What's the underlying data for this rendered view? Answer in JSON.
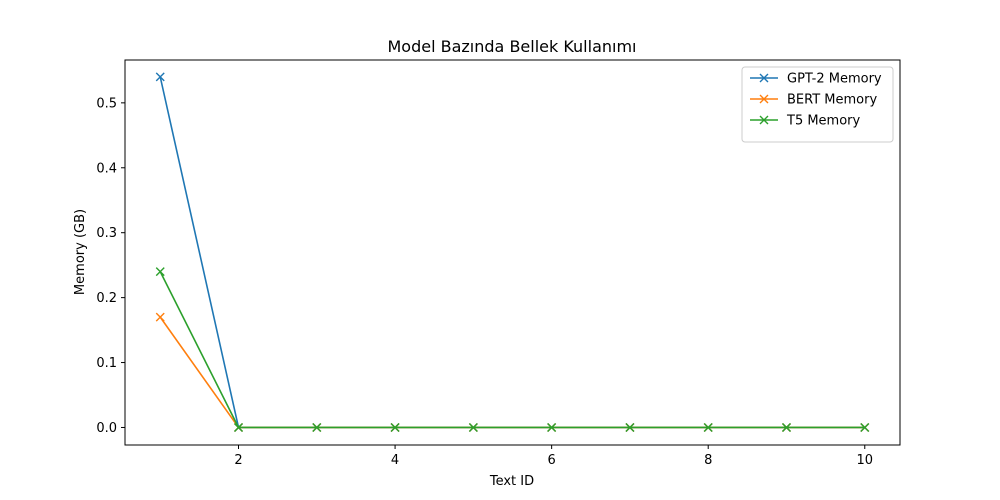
{
  "chart_data": {
    "type": "line",
    "title": "Model Bazında Bellek Kullanımı",
    "xlabel": "Text ID",
    "ylabel": "Memory (GB)",
    "x": [
      1,
      2,
      3,
      4,
      5,
      6,
      7,
      8,
      9,
      10
    ],
    "xlim": [
      0.55,
      10.45
    ],
    "ylim": [
      -0.027,
      0.566
    ],
    "xticks": [
      2,
      4,
      6,
      8,
      10
    ],
    "xtick_labels": [
      "2",
      "4",
      "6",
      "8",
      "10"
    ],
    "yticks": [
      0.0,
      0.1,
      0.2,
      0.3,
      0.4,
      0.5
    ],
    "ytick_labels": [
      "0.0",
      "0.1",
      "0.2",
      "0.3",
      "0.4",
      "0.5"
    ],
    "grid": false,
    "legend_position": "top-right",
    "marker": "x",
    "series": [
      {
        "name": "GPT-2 Memory",
        "color": "#1f77b4",
        "values": [
          0.54,
          0,
          0,
          0,
          0,
          0,
          0,
          0,
          0,
          0
        ]
      },
      {
        "name": "BERT Memory",
        "color": "#ff7f0e",
        "values": [
          0.17,
          0,
          0,
          0,
          0,
          0,
          0,
          0,
          0,
          0
        ]
      },
      {
        "name": "T5 Memory",
        "color": "#2ca02c",
        "values": [
          0.24,
          0,
          0,
          0,
          0,
          0,
          0,
          0,
          0,
          0
        ]
      }
    ]
  }
}
